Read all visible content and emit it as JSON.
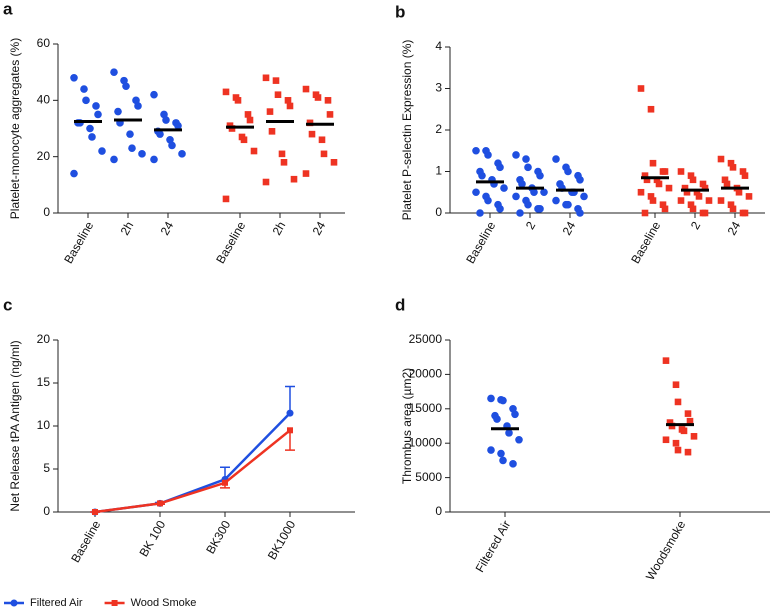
{
  "chart_data": [
    {
      "type": "dotplot",
      "panel_label": "a",
      "y_label": "Platelet-monocyte aggregates (%)",
      "categories": [
        "Baseline",
        "2h",
        "24",
        "Baseline",
        "2h",
        "24"
      ],
      "colors": [
        "#1f4fe0",
        "#1f4fe0",
        "#1f4fe0",
        "#ee3322",
        "#ee3322",
        "#ee3322"
      ],
      "markers": [
        "circle",
        "circle",
        "circle",
        "square",
        "square",
        "square"
      ],
      "values": [
        [
          48,
          44,
          40,
          38,
          35,
          32,
          32,
          30,
          27,
          22,
          14
        ],
        [
          50,
          47,
          45,
          40,
          38,
          36,
          32,
          28,
          23,
          21,
          19
        ],
        [
          42,
          35,
          33,
          32,
          31,
          29,
          28,
          26,
          24,
          21,
          19
        ],
        [
          43,
          41,
          40,
          35,
          33,
          31,
          30,
          27,
          26,
          22,
          5
        ],
        [
          48,
          47,
          42,
          40,
          38,
          36,
          29,
          21,
          18,
          12,
          11
        ],
        [
          44,
          42,
          41,
          40,
          35,
          32,
          28,
          26,
          21,
          18,
          14
        ]
      ],
      "means": [
        32.5,
        33,
        29.5,
        30.5,
        32.5,
        31.5
      ],
      "ylim": [
        0,
        60
      ],
      "yticks": [
        0,
        20,
        40,
        60
      ]
    },
    {
      "type": "dotplot",
      "panel_label": "b",
      "y_label": "Platelet P-selectin Expression (%)",
      "categories": [
        "Baseline",
        "2",
        "24",
        "Baseline",
        "2",
        "24"
      ],
      "colors": [
        "#1f4fe0",
        "#1f4fe0",
        "#1f4fe0",
        "#ee3322",
        "#ee3322",
        "#ee3322"
      ],
      "markers": [
        "circle",
        "circle",
        "circle",
        "square",
        "square",
        "square"
      ],
      "values": [
        [
          1.5,
          1.5,
          1.4,
          1.2,
          1.1,
          1.0,
          0.9,
          0.8,
          0.7,
          0.6,
          0.5,
          0.4,
          0.3,
          0.2,
          0.1,
          0.0
        ],
        [
          1.4,
          1.3,
          1.1,
          1.0,
          0.9,
          0.8,
          0.7,
          0.6,
          0.5,
          0.5,
          0.4,
          0.3,
          0.2,
          0.1,
          0.1,
          0.0
        ],
        [
          1.3,
          1.1,
          1.0,
          0.9,
          0.8,
          0.7,
          0.6,
          0.5,
          0.5,
          0.4,
          0.3,
          0.2,
          0.2,
          0.1,
          0.0
        ],
        [
          3.0,
          2.5,
          1.2,
          1.0,
          1.0,
          0.9,
          0.8,
          0.8,
          0.7,
          0.6,
          0.5,
          0.4,
          0.3,
          0.2,
          0.1,
          0.0
        ],
        [
          1.0,
          0.9,
          0.8,
          0.7,
          0.6,
          0.6,
          0.5,
          0.5,
          0.4,
          0.3,
          0.3,
          0.2,
          0.1,
          0.0,
          0.0
        ],
        [
          1.3,
          1.2,
          1.1,
          1.0,
          0.9,
          0.8,
          0.7,
          0.6,
          0.5,
          0.4,
          0.3,
          0.2,
          0.1,
          0.0,
          0.0
        ]
      ],
      "means": [
        0.75,
        0.6,
        0.55,
        0.85,
        0.55,
        0.6
      ],
      "ylim": [
        0,
        4
      ],
      "yticks": [
        0,
        1,
        2,
        3,
        4
      ]
    },
    {
      "type": "line",
      "panel_label": "c",
      "y_label": "Net Release tPA Antigen (ng/ml)",
      "categories": [
        "Baseline",
        "BK 100",
        "BK300",
        "BK1000"
      ],
      "series": [
        {
          "name": "Filtered Air",
          "color": "#1f4fe0",
          "marker": "circle",
          "values": [
            0,
            1.0,
            3.8,
            11.5
          ],
          "errors": [
            0,
            0.1,
            1.4,
            3.1
          ],
          "error_direction": "up"
        },
        {
          "name": "Wood Smoke",
          "color": "#ee3322",
          "marker": "square",
          "values": [
            0,
            1.0,
            3.4,
            9.5
          ],
          "errors": [
            0,
            0.1,
            0.6,
            2.3
          ],
          "error_direction": "down"
        }
      ],
      "ylim": [
        0,
        20
      ],
      "yticks": [
        0,
        5,
        10,
        15,
        20
      ],
      "legend": "bottom"
    },
    {
      "type": "dotplot",
      "panel_label": "d",
      "y_label": "Thrombus area (µm2)",
      "categories": [
        "Filtered Air",
        "Woodsmoke"
      ],
      "colors": [
        "#1f4fe0",
        "#ee3322"
      ],
      "markers": [
        "circle",
        "square"
      ],
      "values": [
        [
          16500,
          16300,
          16200,
          15000,
          14200,
          14000,
          13500,
          12500,
          11500,
          10500,
          9000,
          8500,
          7500,
          7000
        ],
        [
          22000,
          18500,
          16000,
          14300,
          13200,
          13000,
          12500,
          12000,
          11800,
          11000,
          10500,
          10000,
          9000,
          8700
        ]
      ],
      "means": [
        12100,
        12700
      ],
      "ylim": [
        0,
        25000
      ],
      "yticks": [
        0,
        5000,
        10000,
        15000,
        20000,
        25000
      ]
    }
  ]
}
